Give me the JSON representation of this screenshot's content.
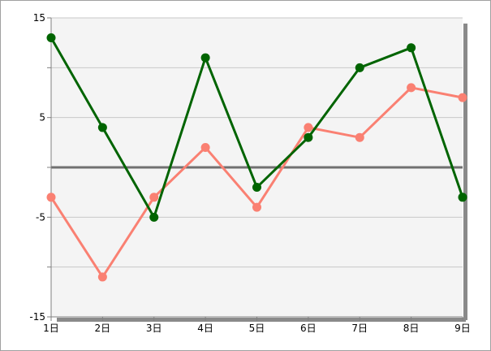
{
  "chart_data": {
    "type": "line",
    "title": "",
    "xlabel": "",
    "ylabel": "",
    "categories": [
      "1日",
      "2日",
      "3日",
      "4日",
      "5日",
      "6日",
      "7日",
      "8日",
      "9日"
    ],
    "ylim": [
      -15,
      15
    ],
    "y_ticks": [
      -15,
      -5,
      5,
      15
    ],
    "y_tick_labels": [
      "-15",
      "-5",
      "5",
      "15"
    ],
    "zero_line": 0,
    "grid": true,
    "legend": "none",
    "series": [
      {
        "color": "#006400",
        "values": [
          13,
          4,
          -5,
          11,
          -2,
          3,
          10,
          12,
          -3
        ]
      },
      {
        "color": "#fa8072",
        "values": [
          -3,
          -11,
          -3,
          2,
          -4,
          4,
          3,
          8,
          7
        ]
      }
    ],
    "colors": {
      "plot_background": "#f4f4f4",
      "grid": "#c8c8c8",
      "zero_line": "#707070",
      "axis": "#808080",
      "shadow": "#8a8a8a"
    }
  }
}
